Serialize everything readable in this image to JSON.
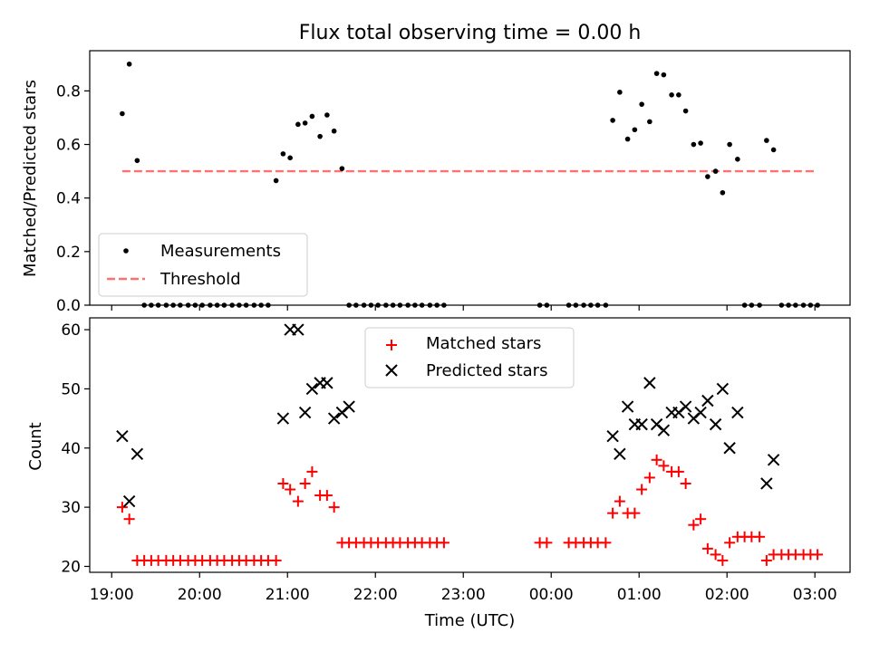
{
  "chart_data": [
    {
      "type": "scatter",
      "title": "Flux total observing time = 0.00 h",
      "ylabel": "Matched/Predicted stars",
      "ylim": [
        0,
        0.95
      ],
      "y_ticks": [
        0.0,
        0.2,
        0.4,
        0.6,
        0.8
      ],
      "y_tick_labels": [
        "0.0",
        "0.2",
        "0.4",
        "0.6",
        "0.8"
      ],
      "threshold": {
        "value": 0.5,
        "x_start": 19.12,
        "x_end": 27.0,
        "color": "#ff7070"
      },
      "legend": {
        "position": "lower-left",
        "entries": [
          "Measurements",
          "Threshold"
        ]
      },
      "series": [
        {
          "name": "Measurements",
          "color": "#000000",
          "x": [
            19.12,
            19.2,
            19.29,
            19.37,
            19.45,
            19.53,
            19.62,
            19.7,
            19.78,
            19.87,
            19.95,
            20.03,
            20.12,
            20.2,
            20.28,
            20.37,
            20.45,
            20.53,
            20.62,
            20.7,
            20.78,
            20.87,
            20.95,
            21.03,
            21.12,
            21.2,
            21.28,
            21.37,
            21.45,
            21.53,
            21.62,
            21.7,
            21.78,
            21.87,
            21.95,
            22.03,
            22.12,
            22.2,
            22.28,
            22.37,
            22.45,
            22.53,
            22.62,
            22.7,
            22.78,
            23.87,
            23.95,
            24.2,
            24.28,
            24.37,
            24.45,
            24.53,
            24.62,
            24.7,
            24.78,
            24.87,
            24.95,
            25.03,
            25.12,
            25.2,
            25.28,
            25.37,
            25.45,
            25.53,
            25.62,
            25.7,
            25.78,
            25.87,
            25.95,
            26.03,
            26.12,
            26.2,
            26.28,
            26.37,
            26.45,
            26.53,
            26.62,
            26.7,
            26.78,
            26.87,
            26.95,
            27.03
          ],
          "y": [
            0.715,
            0.9,
            0.54,
            0,
            0,
            0,
            0,
            0,
            0,
            0,
            0,
            0,
            0,
            0,
            0,
            0,
            0,
            0,
            0,
            0,
            0,
            0.465,
            0.565,
            0.55,
            0.675,
            0.68,
            0.705,
            0.63,
            0.71,
            0.65,
            0.51,
            0,
            0,
            0,
            0,
            0,
            0,
            0,
            0,
            0,
            0,
            0,
            0,
            0,
            0,
            0,
            0,
            0,
            0,
            0,
            0,
            0,
            0,
            0.69,
            0.795,
            0.62,
            0.655,
            0.75,
            0.685,
            0.865,
            0.86,
            0.785,
            0.785,
            0.725,
            0.6,
            0.605,
            0.48,
            0.5,
            0.42,
            0.6,
            0.545,
            0,
            0,
            0,
            0.615,
            0.58,
            0,
            0,
            0,
            0,
            0,
            0
          ]
        }
      ]
    },
    {
      "type": "scatter",
      "xlabel": "Time (UTC)",
      "ylabel": "Count",
      "ylim": [
        19,
        62
      ],
      "xlim": [
        18.75,
        27.4
      ],
      "y_ticks": [
        20,
        30,
        40,
        50,
        60
      ],
      "y_tick_labels": [
        "20",
        "30",
        "40",
        "50",
        "60"
      ],
      "x_ticks": [
        19,
        20,
        21,
        22,
        23,
        24,
        25,
        26,
        27
      ],
      "x_tick_labels": [
        "19:00",
        "20:00",
        "21:00",
        "22:00",
        "23:00",
        "00:00",
        "01:00",
        "02:00",
        "03:00"
      ],
      "legend": {
        "position": "top-center",
        "entries": [
          "Matched stars",
          "Predicted stars"
        ]
      },
      "series": [
        {
          "name": "Matched stars",
          "color": "#ff0000",
          "marker": "+",
          "x": [
            19.12,
            19.2,
            19.29,
            19.37,
            19.45,
            19.53,
            19.62,
            19.7,
            19.78,
            19.87,
            19.95,
            20.03,
            20.12,
            20.2,
            20.28,
            20.37,
            20.45,
            20.53,
            20.62,
            20.7,
            20.78,
            20.87,
            20.95,
            21.03,
            21.12,
            21.2,
            21.28,
            21.37,
            21.45,
            21.53,
            21.62,
            21.7,
            21.78,
            21.87,
            21.95,
            22.03,
            22.12,
            22.2,
            22.28,
            22.37,
            22.45,
            22.53,
            22.62,
            22.7,
            22.78,
            23.87,
            23.95,
            24.2,
            24.28,
            24.37,
            24.45,
            24.53,
            24.62,
            24.7,
            24.78,
            24.87,
            24.95,
            25.03,
            25.12,
            25.2,
            25.28,
            25.37,
            25.45,
            25.53,
            25.62,
            25.7,
            25.78,
            25.87,
            25.95,
            26.03,
            26.12,
            26.2,
            26.28,
            26.37,
            26.45,
            26.53,
            26.62,
            26.7,
            26.78,
            26.87,
            26.95,
            27.03
          ],
          "y": [
            30,
            28,
            21,
            21,
            21,
            21,
            21,
            21,
            21,
            21,
            21,
            21,
            21,
            21,
            21,
            21,
            21,
            21,
            21,
            21,
            21,
            21,
            34,
            33,
            31,
            34,
            36,
            32,
            32,
            30,
            24,
            24,
            24,
            24,
            24,
            24,
            24,
            24,
            24,
            24,
            24,
            24,
            24,
            24,
            24,
            24,
            24,
            24,
            24,
            24,
            24,
            24,
            24,
            29,
            31,
            29,
            29,
            33,
            35,
            38,
            37,
            36,
            36,
            34,
            27,
            28,
            23,
            22,
            21,
            24,
            25,
            25,
            25,
            25,
            21,
            22,
            22,
            22,
            22,
            22,
            22,
            22
          ]
        },
        {
          "name": "Predicted stars",
          "color": "#000000",
          "marker": "x",
          "x": [
            19.12,
            19.2,
            19.29,
            20.95,
            21.03,
            21.12,
            21.2,
            21.28,
            21.37,
            21.45,
            21.53,
            21.62,
            21.7,
            24.7,
            24.78,
            24.87,
            24.95,
            25.03,
            25.12,
            25.2,
            25.28,
            25.37,
            25.45,
            25.53,
            25.62,
            25.7,
            25.78,
            25.87,
            25.95,
            26.03,
            26.12,
            26.45,
            26.53
          ],
          "y": [
            42,
            31,
            39,
            45,
            60,
            60,
            46,
            50,
            51,
            51,
            45,
            46,
            47,
            42,
            39,
            47,
            44,
            44,
            51,
            44,
            43,
            46,
            46,
            47,
            45,
            46,
            48,
            44,
            50,
            40,
            46,
            34,
            38
          ]
        }
      ]
    }
  ]
}
